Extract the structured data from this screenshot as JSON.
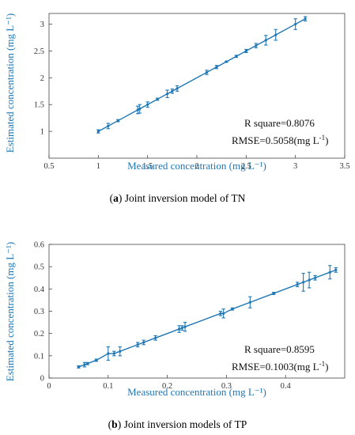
{
  "colors": {
    "series": "#1f77b4",
    "axis": "#444444",
    "axis_title": "#1f77b4"
  },
  "captions": [
    {
      "letter": "a",
      "text": " Joint inversion model of TN"
    },
    {
      "letter": "b",
      "text": " Joint inversion models of TP"
    }
  ],
  "chart_data": [
    {
      "type": "line",
      "xlabel": "Measured concentration (mg L⁻¹)",
      "ylabel": "Estimated concentration (mg L⁻¹)",
      "xlim": [
        0.5,
        3.5
      ],
      "ylim": [
        0.5,
        3.2
      ],
      "xticks": [
        0.5,
        1,
        1.5,
        2,
        2.5,
        3,
        3.5
      ],
      "xtick_labels": [
        "0.5",
        "1",
        "1.5",
        "2",
        "2.5",
        "3",
        "3.5"
      ],
      "yticks": [
        1,
        1.5,
        2,
        2.5,
        3
      ],
      "ytick_labels": [
        "1",
        "1.5",
        "2",
        "2.5",
        "3"
      ],
      "grid": false,
      "r_square": "R square=0.8076",
      "rmse_text": "RMSE=0.5058(mg L",
      "rmse_sup": "-1",
      "rmse_close": ")",
      "x": [
        1.0,
        1.1,
        1.2,
        1.4,
        1.42,
        1.5,
        1.6,
        1.7,
        1.75,
        1.8,
        2.1,
        2.2,
        2.3,
        2.4,
        2.5,
        2.6,
        2.7,
        2.8,
        3.0,
        3.1
      ],
      "y": [
        1.0,
        1.1,
        1.2,
        1.4,
        1.42,
        1.5,
        1.6,
        1.7,
        1.75,
        1.8,
        2.1,
        2.2,
        2.3,
        2.4,
        2.5,
        2.6,
        2.7,
        2.8,
        3.0,
        3.1
      ],
      "err": [
        0.03,
        0.05,
        0.02,
        0.07,
        0.08,
        0.05,
        0.02,
        0.07,
        0.04,
        0.05,
        0.04,
        0.03,
        0.01,
        0.02,
        0.03,
        0.04,
        0.09,
        0.1,
        0.1,
        0.04
      ]
    },
    {
      "type": "line",
      "xlabel": "Measured concentration (mg L⁻¹)",
      "ylabel": "Estimated concentration (mg L⁻¹)",
      "xlim": [
        0,
        0.5
      ],
      "ylim": [
        0,
        0.6
      ],
      "xticks": [
        0,
        0.1,
        0.2,
        0.3,
        0.4
      ],
      "xtick_labels": [
        "0",
        "0.1",
        "0.2",
        "0.3",
        "0.4"
      ],
      "yticks": [
        0,
        0.1,
        0.2,
        0.3,
        0.4,
        0.5,
        0.6
      ],
      "ytick_labels": [
        "0",
        "0.1",
        "0.2",
        "0.3",
        "0.4",
        "0.5",
        "0.6"
      ],
      "grid": false,
      "r_square": "R square=0.8595",
      "rmse_text": "RMSE=0.1003(mg L",
      "rmse_sup": "-1",
      "rmse_close": ")",
      "x": [
        0.05,
        0.06,
        0.065,
        0.08,
        0.1,
        0.11,
        0.12,
        0.15,
        0.16,
        0.18,
        0.22,
        0.225,
        0.23,
        0.29,
        0.295,
        0.31,
        0.34,
        0.38,
        0.42,
        0.43,
        0.44,
        0.45,
        0.475,
        0.485
      ],
      "y": [
        0.05,
        0.06,
        0.065,
        0.08,
        0.11,
        0.11,
        0.12,
        0.15,
        0.16,
        0.18,
        0.22,
        0.225,
        0.23,
        0.29,
        0.29,
        0.31,
        0.34,
        0.38,
        0.42,
        0.43,
        0.44,
        0.45,
        0.475,
        0.485
      ],
      "err": [
        0.005,
        0.01,
        0.005,
        0.005,
        0.03,
        0.01,
        0.02,
        0.01,
        0.01,
        0.01,
        0.015,
        0.01,
        0.02,
        0.01,
        0.02,
        0.005,
        0.025,
        0.005,
        0.01,
        0.04,
        0.035,
        0.01,
        0.03,
        0.01
      ]
    }
  ]
}
